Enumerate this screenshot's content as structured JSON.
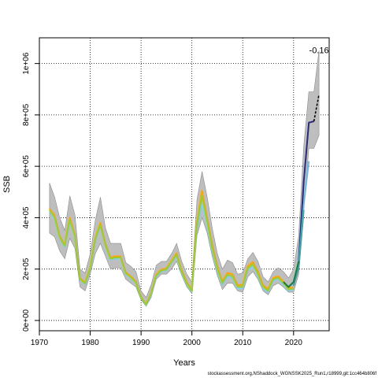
{
  "chart_data": {
    "type": "line",
    "title": "",
    "xlabel": "Years",
    "ylabel": "SSB",
    "xlim": [
      1970,
      2027
    ],
    "ylim": [
      -40000,
      1100000
    ],
    "x_ticks": [
      1970,
      1980,
      1990,
      2000,
      2010,
      2020
    ],
    "y_ticks": [
      {
        "value": 0,
        "label": "0e+00"
      },
      {
        "value": 200000,
        "label": "2e+05"
      },
      {
        "value": 400000,
        "label": "4e+05"
      },
      {
        "value": 600000,
        "label": "6e+05"
      },
      {
        "value": 800000,
        "label": "8e+05"
      },
      {
        "value": 1000000,
        "label": "1e+06"
      }
    ],
    "grid": true,
    "annotation": "-0.16",
    "footer": "stockassessment.org,NShaddock_WGNSSK2025_Run1,r18999,git:1cc464b806f",
    "colors": {
      "band": "#bebebe",
      "band_edge": "#8c8c8c",
      "blue": "#87ceeb",
      "green": "#9acd32",
      "orange": "#ffa500",
      "navy": "#2a2a7a",
      "lightblue": "#6cb8e8",
      "teal": "#3aa6a6",
      "darkgreen": "#1e7a3a"
    },
    "band": {
      "x": [
        1972,
        1973,
        1974,
        1975,
        1976,
        1977,
        1978,
        1979,
        1980,
        1981,
        1982,
        1983,
        1984,
        1985,
        1986,
        1987,
        1988,
        1989,
        1990,
        1991,
        1992,
        1993,
        1994,
        1995,
        1996,
        1997,
        1998,
        1999,
        2000,
        2001,
        2002,
        2003,
        2004,
        2005,
        2006,
        2007,
        2008,
        2009,
        2010,
        2011,
        2012,
        2013,
        2014,
        2015,
        2016,
        2017,
        2018,
        2019,
        2020,
        2021,
        2022,
        2023,
        2024,
        2025
      ],
      "upper": [
        535000,
        480000,
        400000,
        350000,
        485000,
        410000,
        200000,
        185000,
        260000,
        390000,
        480000,
        360000,
        300000,
        300000,
        300000,
        225000,
        210000,
        190000,
        115000,
        90000,
        140000,
        215000,
        230000,
        230000,
        260000,
        300000,
        230000,
        180000,
        150000,
        470000,
        580000,
        480000,
        360000,
        260000,
        200000,
        235000,
        225000,
        180000,
        185000,
        240000,
        265000,
        230000,
        170000,
        150000,
        190000,
        205000,
        190000,
        165000,
        200000,
        330000,
        680000,
        890000,
        890000,
        1050000
      ],
      "lower": [
        340000,
        325000,
        270000,
        240000,
        320000,
        280000,
        130000,
        115000,
        180000,
        260000,
        300000,
        250000,
        200000,
        205000,
        205000,
        160000,
        145000,
        130000,
        80000,
        55000,
        90000,
        160000,
        180000,
        180000,
        200000,
        230000,
        175000,
        130000,
        105000,
        330000,
        400000,
        340000,
        250000,
        175000,
        120000,
        145000,
        145000,
        115000,
        110000,
        170000,
        190000,
        160000,
        115000,
        100000,
        135000,
        145000,
        130000,
        110000,
        110000,
        180000,
        430000,
        670000,
        670000,
        720000
      ]
    },
    "series": [
      {
        "color_key": "blue",
        "x": [
          1972,
          1973,
          1974,
          1975,
          1976,
          1977,
          1978,
          1979,
          1980,
          1981,
          1982,
          1983,
          1984,
          1985,
          1986,
          1987,
          1988,
          1989,
          1990,
          1991,
          1992,
          1993,
          1994,
          1995,
          1996,
          1997,
          1998,
          1999,
          2000,
          2001,
          2002,
          2003,
          2004,
          2005,
          2006,
          2007,
          2008,
          2009,
          2010,
          2011,
          2012,
          2013,
          2014,
          2015,
          2016,
          2017,
          2018,
          2019,
          2020
        ],
        "y": [
          425000,
          395000,
          320000,
          285000,
          385000,
          325000,
          160000,
          140000,
          195000,
          310000,
          365000,
          290000,
          235000,
          240000,
          240000,
          180000,
          165000,
          145000,
          88000,
          60000,
          100000,
          170000,
          190000,
          195000,
          225000,
          250000,
          185000,
          140000,
          112000,
          355000,
          450000,
          375000,
          275000,
          195000,
          140000,
          170000,
          165000,
          125000,
          125000,
          195000,
          210000,
          175000,
          125000,
          110000,
          155000,
          160000,
          140000,
          115000,
          120000
        ]
      },
      {
        "color_key": "orange",
        "x": [
          1972,
          1973,
          1974,
          1975,
          1976,
          1977,
          1978,
          1979,
          1980,
          1981,
          1982,
          1983,
          1984,
          1985,
          1986,
          1987,
          1988,
          1989,
          1990,
          1991,
          1992,
          1993,
          1994,
          1995,
          1996,
          1997,
          1998,
          1999,
          2000,
          2001,
          2002,
          2003,
          2004,
          2005,
          2006,
          2007,
          2008,
          2009,
          2010,
          2011,
          2012,
          2013,
          2014,
          2015,
          2016,
          2017,
          2018,
          2019,
          2020
        ],
        "y": [
          435000,
          410000,
          330000,
          295000,
          400000,
          335000,
          165000,
          148000,
          205000,
          320000,
          380000,
          300000,
          245000,
          250000,
          250000,
          188000,
          172000,
          152000,
          92000,
          64000,
          106000,
          178000,
          198000,
          202000,
          232000,
          262000,
          196000,
          150000,
          118000,
          378000,
          505000,
          400000,
          298000,
          212000,
          152000,
          185000,
          180000,
          138000,
          138000,
          210000,
          228000,
          190000,
          138000,
          122000,
          165000,
          172000,
          152000,
          128000,
          128000
        ]
      },
      {
        "color_key": "green",
        "x": [
          1972,
          1973,
          1974,
          1975,
          1976,
          1977,
          1978,
          1979,
          1980,
          1981,
          1982,
          1983,
          1984,
          1985,
          1986,
          1987,
          1988,
          1989,
          1990,
          1991,
          1992,
          1993,
          1994,
          1995,
          1996,
          1997,
          1998,
          1999,
          2000,
          2001,
          2002,
          2003,
          2004,
          2005,
          2006,
          2007,
          2008,
          2009,
          2010,
          2011,
          2012,
          2013,
          2014,
          2015,
          2016,
          2017,
          2018,
          2019,
          2020
        ],
        "y": [
          430000,
          402000,
          325000,
          290000,
          392000,
          330000,
          162000,
          144000,
          200000,
          315000,
          372000,
          295000,
          240000,
          245000,
          245000,
          184000,
          168000,
          148000,
          90000,
          62000,
          103000,
          174000,
          194000,
          198000,
          228000,
          256000,
          190000,
          145000,
          115000,
          366000,
          485000,
          388000,
          286000,
          203000,
          146000,
          178000,
          172000,
          131000,
          131000,
          202000,
          219000,
          182000,
          131000,
          116000,
          160000,
          166000,
          146000,
          121000,
          124000
        ]
      },
      {
        "color_key": "navy",
        "x": [
          2020,
          2021,
          2022,
          2023,
          2024
        ],
        "y": [
          135000,
          230000,
          540000,
          770000,
          775000
        ]
      },
      {
        "color_key": "lightblue",
        "x": [
          2020,
          2021,
          2022,
          2023
        ],
        "y": [
          135000,
          215000,
          450000,
          620000
        ]
      },
      {
        "color_key": "teal",
        "x": [
          2020,
          2021,
          2022
        ],
        "y": [
          135000,
          205000,
          430000
        ]
      },
      {
        "color_key": "darkgreen",
        "x": [
          2018,
          2019,
          2020,
          2021
        ],
        "y": [
          150000,
          130000,
          150000,
          230000
        ]
      }
    ],
    "dashed_tail": {
      "x": [
        2024,
        2025
      ],
      "y": [
        775000,
        880000
      ]
    }
  }
}
